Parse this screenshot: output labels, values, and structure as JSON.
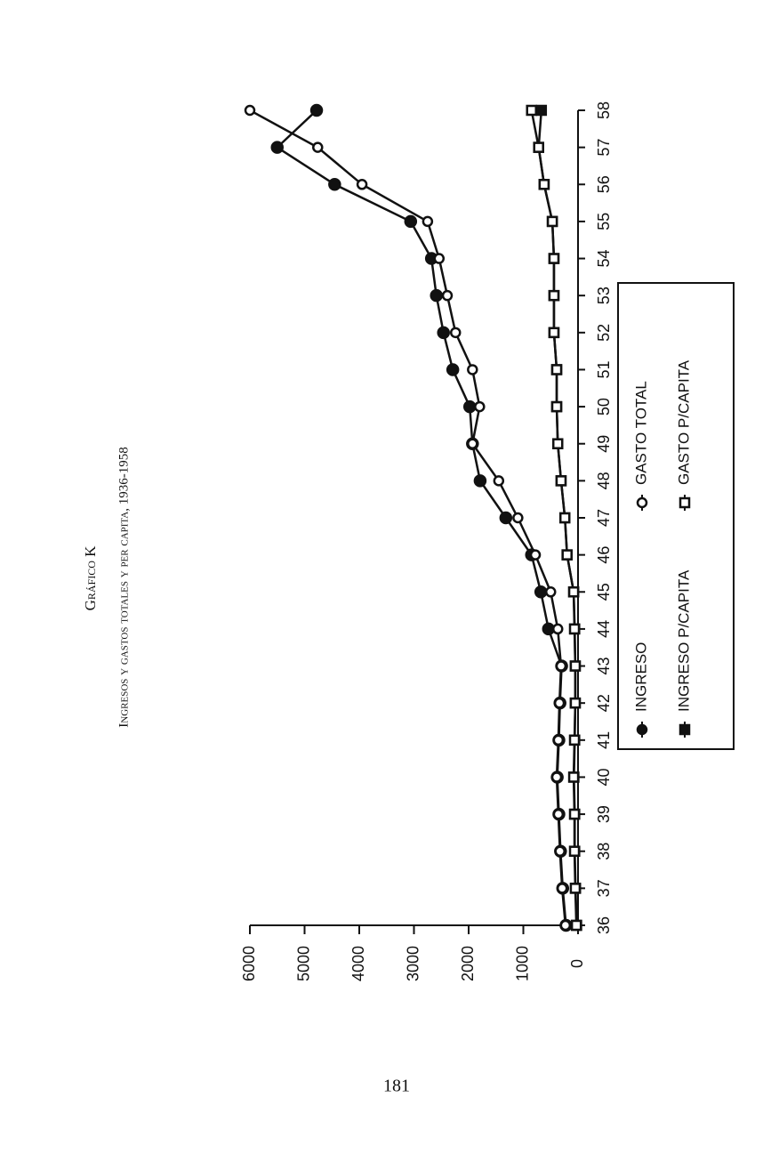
{
  "page_number": "181",
  "chart_data": {
    "type": "line",
    "title": "Gráfico K",
    "subtitle": "Ingresos y gastos totales y per capita, 1936-1958",
    "categories": [
      "36",
      "37",
      "38",
      "39",
      "40",
      "41",
      "42",
      "43",
      "44",
      "45",
      "46",
      "47",
      "48",
      "49",
      "50",
      "51",
      "52",
      "53",
      "54",
      "55",
      "56",
      "57",
      "58"
    ],
    "ylim": [
      0,
      6000
    ],
    "yticks": [
      0,
      1000,
      2000,
      3000,
      4000,
      5000,
      6000
    ],
    "series": [
      {
        "name": "INGRESO",
        "color": "#111111",
        "marker": "circle",
        "filled": true,
        "values": [
          220,
          280,
          320,
          350,
          380,
          350,
          330,
          300,
          540,
          680,
          850,
          1320,
          1790,
          1930,
          1980,
          2290,
          2460,
          2590,
          2680,
          3060,
          4450,
          5500,
          4780
        ]
      },
      {
        "name": "GASTO TOTAL",
        "color": "#111111",
        "marker": "circle",
        "filled": false,
        "values": [
          230,
          290,
          330,
          360,
          390,
          360,
          340,
          310,
          370,
          500,
          780,
          1100,
          1450,
          1930,
          1800,
          1930,
          2240,
          2390,
          2540,
          2750,
          3950,
          4760,
          6000
        ]
      },
      {
        "name": "INGRESO P/CAPITA",
        "color": "#111111",
        "marker": "square",
        "filled": true,
        "values": [
          25,
          45,
          60,
          60,
          75,
          60,
          50,
          50,
          60,
          80,
          200,
          240,
          310,
          370,
          390,
          390,
          440,
          440,
          440,
          470,
          620,
          720,
          670
        ]
      },
      {
        "name": "GASTO P/CAPITA",
        "color": "#111111",
        "marker": "square",
        "filled": false,
        "values": [
          30,
          50,
          65,
          65,
          80,
          65,
          50,
          50,
          65,
          80,
          200,
          240,
          310,
          370,
          390,
          390,
          440,
          440,
          440,
          470,
          620,
          720,
          850
        ]
      }
    ]
  }
}
